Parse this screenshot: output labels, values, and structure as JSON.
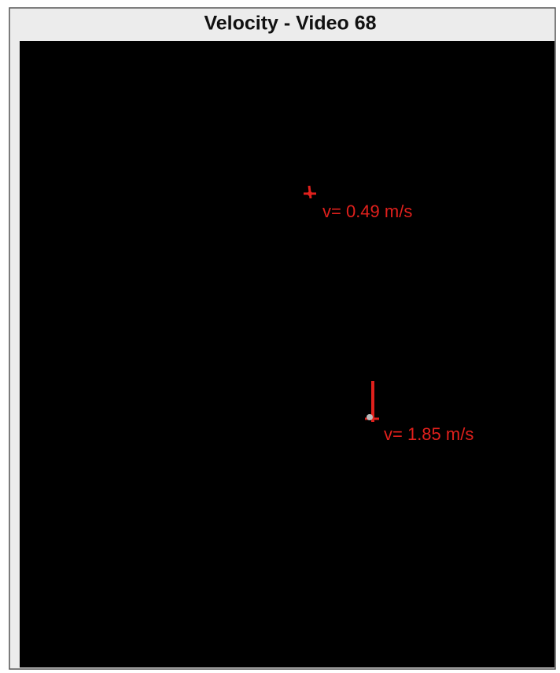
{
  "window": {
    "title": "Velocity - Video 68"
  },
  "annotations": [
    {
      "label": "v= 0.49 m/s"
    },
    {
      "label": "v= 1.85 m/s"
    }
  ]
}
